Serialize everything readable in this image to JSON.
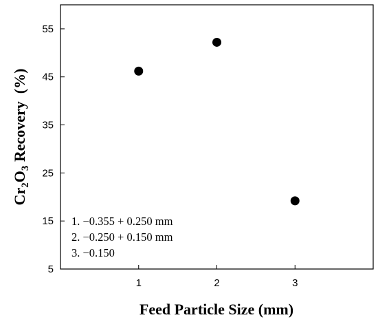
{
  "chart_data": {
    "type": "scatter",
    "title": "",
    "xlabel": "Feed Particle Size (mm)",
    "ylabel": {
      "prefix": "Cr",
      "sub1": "2",
      "middle": "O",
      "sub2": "3",
      "suffix": " Recovery  (%)"
    },
    "xlim": [
      0,
      4
    ],
    "ylim": [
      5,
      60
    ],
    "xticks": [
      1,
      2,
      3
    ],
    "yticks": [
      5,
      15,
      25,
      35,
      45,
      55
    ],
    "grid": false,
    "legend_placement": "bottom-left",
    "series": [
      {
        "x": [
          1,
          2,
          3
        ],
        "y": [
          46.2,
          52.2,
          19.2
        ]
      }
    ],
    "annotations": [
      "1.  −0.355 + 0.250 mm",
      "2.  −0.250 + 0.150 mm",
      "3.  −0.150"
    ],
    "marker_color": "#000000"
  }
}
